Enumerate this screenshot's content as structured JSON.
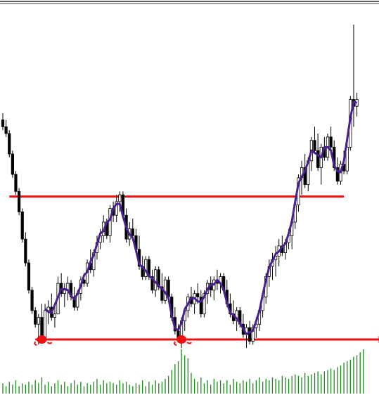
{
  "chart_data": {
    "type": "candlestick",
    "title": "",
    "xlabel": "",
    "ylabel": "",
    "grid": false,
    "legend": "none",
    "ylim": [
      0,
      100
    ],
    "colors": {
      "bull_body": "#ffffff",
      "bear_body": "#000000",
      "wick": "#000000",
      "trend_line": "#4b1f8f",
      "levels": "#ee1111",
      "volume": "#1a8a1a"
    },
    "levels": [
      {
        "kind": "resistance",
        "value": 59.5,
        "start_bar": 2,
        "end_bar": 105
      },
      {
        "kind": "support",
        "value": 17.5,
        "start_bar": 10,
        "end_bar": 117,
        "arrow": true
      }
    ],
    "markers": [
      {
        "shape": "blob",
        "bar": 12,
        "value": 17.5
      },
      {
        "shape": "blob",
        "bar": 55,
        "value": 17.5
      }
    ],
    "bars": [
      {
        "o": 82,
        "h": 84,
        "l": 79,
        "c": 80
      },
      {
        "o": 80,
        "h": 82,
        "l": 77,
        "c": 78
      },
      {
        "o": 78,
        "h": 79,
        "l": 71,
        "c": 72
      },
      {
        "o": 72,
        "h": 73,
        "l": 65,
        "c": 66
      },
      {
        "o": 66,
        "h": 67,
        "l": 60,
        "c": 61
      },
      {
        "o": 61,
        "h": 62,
        "l": 54,
        "c": 55
      },
      {
        "o": 55,
        "h": 56,
        "l": 46,
        "c": 47
      },
      {
        "o": 47,
        "h": 49,
        "l": 39,
        "c": 40
      },
      {
        "o": 40,
        "h": 41,
        "l": 31,
        "c": 32
      },
      {
        "o": 32,
        "h": 33,
        "l": 25,
        "c": 26
      },
      {
        "o": 26,
        "h": 27,
        "l": 21,
        "c": 22
      },
      {
        "o": 22,
        "h": 25,
        "l": 16,
        "c": 24
      },
      {
        "o": 24,
        "h": 28,
        "l": 17,
        "c": 18
      },
      {
        "o": 18,
        "h": 28,
        "l": 18,
        "c": 26
      },
      {
        "o": 26,
        "h": 29,
        "l": 22,
        "c": 27
      },
      {
        "o": 27,
        "h": 31,
        "l": 23,
        "c": 24
      },
      {
        "o": 24,
        "h": 28,
        "l": 21,
        "c": 25
      },
      {
        "o": 25,
        "h": 36,
        "l": 25,
        "c": 34
      },
      {
        "o": 34,
        "h": 37,
        "l": 30,
        "c": 31
      },
      {
        "o": 31,
        "h": 34,
        "l": 27,
        "c": 32
      },
      {
        "o": 32,
        "h": 36,
        "l": 29,
        "c": 34
      },
      {
        "o": 34,
        "h": 35,
        "l": 29,
        "c": 30
      },
      {
        "o": 30,
        "h": 33,
        "l": 26,
        "c": 27
      },
      {
        "o": 27,
        "h": 32,
        "l": 26,
        "c": 31
      },
      {
        "o": 31,
        "h": 36,
        "l": 29,
        "c": 35
      },
      {
        "o": 35,
        "h": 37,
        "l": 33,
        "c": 34
      },
      {
        "o": 34,
        "h": 41,
        "l": 33,
        "c": 40
      },
      {
        "o": 40,
        "h": 44,
        "l": 37,
        "c": 38
      },
      {
        "o": 38,
        "h": 44,
        "l": 36,
        "c": 43
      },
      {
        "o": 43,
        "h": 48,
        "l": 41,
        "c": 46
      },
      {
        "o": 46,
        "h": 50,
        "l": 44,
        "c": 48
      },
      {
        "o": 48,
        "h": 54,
        "l": 46,
        "c": 52
      },
      {
        "o": 52,
        "h": 53,
        "l": 47,
        "c": 48
      },
      {
        "o": 48,
        "h": 57,
        "l": 46,
        "c": 56
      },
      {
        "o": 56,
        "h": 58,
        "l": 52,
        "c": 54
      },
      {
        "o": 54,
        "h": 60,
        "l": 52,
        "c": 58
      },
      {
        "o": 58,
        "h": 61,
        "l": 55,
        "c": 60
      },
      {
        "o": 60,
        "h": 61,
        "l": 53,
        "c": 54
      },
      {
        "o": 54,
        "h": 56,
        "l": 46,
        "c": 47
      },
      {
        "o": 47,
        "h": 52,
        "l": 45,
        "c": 50
      },
      {
        "o": 50,
        "h": 53,
        "l": 47,
        "c": 48
      },
      {
        "o": 48,
        "h": 50,
        "l": 43,
        "c": 44
      },
      {
        "o": 44,
        "h": 48,
        "l": 38,
        "c": 39
      },
      {
        "o": 39,
        "h": 42,
        "l": 35,
        "c": 36
      },
      {
        "o": 36,
        "h": 42,
        "l": 35,
        "c": 41
      },
      {
        "o": 41,
        "h": 42,
        "l": 35,
        "c": 36
      },
      {
        "o": 36,
        "h": 38,
        "l": 31,
        "c": 32
      },
      {
        "o": 32,
        "h": 39,
        "l": 30,
        "c": 38
      },
      {
        "o": 38,
        "h": 39,
        "l": 32,
        "c": 33
      },
      {
        "o": 33,
        "h": 37,
        "l": 28,
        "c": 29
      },
      {
        "o": 29,
        "h": 36,
        "l": 28,
        "c": 35
      },
      {
        "o": 35,
        "h": 36,
        "l": 29,
        "c": 30
      },
      {
        "o": 30,
        "h": 31,
        "l": 23,
        "c": 24
      },
      {
        "o": 24,
        "h": 27,
        "l": 19,
        "c": 20
      },
      {
        "o": 20,
        "h": 22,
        "l": 17,
        "c": 18
      },
      {
        "o": 18,
        "h": 24,
        "l": 15,
        "c": 23
      },
      {
        "o": 23,
        "h": 27,
        "l": 20,
        "c": 26
      },
      {
        "o": 26,
        "h": 31,
        "l": 24,
        "c": 30
      },
      {
        "o": 30,
        "h": 33,
        "l": 27,
        "c": 28
      },
      {
        "o": 28,
        "h": 32,
        "l": 25,
        "c": 31
      },
      {
        "o": 31,
        "h": 34,
        "l": 28,
        "c": 30
      },
      {
        "o": 30,
        "h": 32,
        "l": 24,
        "c": 25
      },
      {
        "o": 25,
        "h": 32,
        "l": 24,
        "c": 31
      },
      {
        "o": 31,
        "h": 35,
        "l": 28,
        "c": 34
      },
      {
        "o": 34,
        "h": 36,
        "l": 30,
        "c": 32
      },
      {
        "o": 32,
        "h": 36,
        "l": 29,
        "c": 35
      },
      {
        "o": 35,
        "h": 38,
        "l": 32,
        "c": 34
      },
      {
        "o": 34,
        "h": 37,
        "l": 31,
        "c": 36
      },
      {
        "o": 36,
        "h": 37,
        "l": 31,
        "c": 32
      },
      {
        "o": 32,
        "h": 35,
        "l": 27,
        "c": 28
      },
      {
        "o": 28,
        "h": 31,
        "l": 24,
        "c": 25
      },
      {
        "o": 25,
        "h": 29,
        "l": 22,
        "c": 23
      },
      {
        "o": 23,
        "h": 27,
        "l": 20,
        "c": 26
      },
      {
        "o": 26,
        "h": 27,
        "l": 21,
        "c": 22
      },
      {
        "o": 22,
        "h": 25,
        "l": 18,
        "c": 19
      },
      {
        "o": 19,
        "h": 22,
        "l": 15,
        "c": 21
      },
      {
        "o": 21,
        "h": 23,
        "l": 16,
        "c": 17
      },
      {
        "o": 17,
        "h": 22,
        "l": 16,
        "c": 21
      },
      {
        "o": 21,
        "h": 24,
        "l": 18,
        "c": 22
      },
      {
        "o": 22,
        "h": 27,
        "l": 20,
        "c": 26
      },
      {
        "o": 26,
        "h": 31,
        "l": 24,
        "c": 30
      },
      {
        "o": 30,
        "h": 37,
        "l": 28,
        "c": 36
      },
      {
        "o": 36,
        "h": 41,
        "l": 33,
        "c": 39
      },
      {
        "o": 39,
        "h": 43,
        "l": 35,
        "c": 41
      },
      {
        "o": 41,
        "h": 45,
        "l": 36,
        "c": 42
      },
      {
        "o": 42,
        "h": 47,
        "l": 39,
        "c": 45
      },
      {
        "o": 45,
        "h": 48,
        "l": 42,
        "c": 43
      },
      {
        "o": 43,
        "h": 47,
        "l": 41,
        "c": 46
      },
      {
        "o": 46,
        "h": 50,
        "l": 44,
        "c": 48
      },
      {
        "o": 48,
        "h": 53,
        "l": 44,
        "c": 52
      },
      {
        "o": 52,
        "h": 58,
        "l": 50,
        "c": 57
      },
      {
        "o": 57,
        "h": 66,
        "l": 55,
        "c": 65
      },
      {
        "o": 65,
        "h": 70,
        "l": 60,
        "c": 68
      },
      {
        "o": 68,
        "h": 72,
        "l": 62,
        "c": 63
      },
      {
        "o": 63,
        "h": 71,
        "l": 61,
        "c": 70
      },
      {
        "o": 70,
        "h": 77,
        "l": 67,
        "c": 76
      },
      {
        "o": 76,
        "h": 80,
        "l": 72,
        "c": 73
      },
      {
        "o": 73,
        "h": 78,
        "l": 67,
        "c": 68
      },
      {
        "o": 68,
        "h": 75,
        "l": 63,
        "c": 74
      },
      {
        "o": 74,
        "h": 77,
        "l": 70,
        "c": 71
      },
      {
        "o": 71,
        "h": 78,
        "l": 70,
        "c": 77
      },
      {
        "o": 77,
        "h": 80,
        "l": 72,
        "c": 74
      },
      {
        "o": 74,
        "h": 76,
        "l": 67,
        "c": 68
      },
      {
        "o": 68,
        "h": 71,
        "l": 63,
        "c": 64
      },
      {
        "o": 64,
        "h": 70,
        "l": 63,
        "c": 69
      },
      {
        "o": 69,
        "h": 73,
        "l": 66,
        "c": 67
      },
      {
        "o": 67,
        "h": 75,
        "l": 66,
        "c": 74
      },
      {
        "o": 74,
        "h": 89,
        "l": 73,
        "c": 88
      },
      {
        "o": 88,
        "h": 110,
        "l": 80,
        "c": 86
      },
      {
        "o": 86,
        "h": 90,
        "l": 83,
        "c": 88
      }
    ],
    "volume": [
      7,
      5,
      8,
      6,
      9,
      5,
      7,
      6,
      8,
      6,
      9,
      7,
      11,
      6,
      8,
      5,
      7,
      9,
      6,
      8,
      5,
      7,
      9,
      6,
      8,
      5,
      7,
      6,
      8,
      10,
      6,
      9,
      7,
      8,
      7,
      6,
      9,
      7,
      8,
      6,
      5,
      7,
      6,
      9,
      5,
      8,
      6,
      9,
      7,
      8,
      10,
      12,
      16,
      20,
      22,
      30,
      26,
      24,
      14,
      10,
      8,
      11,
      7,
      9,
      6,
      10,
      8,
      9,
      7,
      9,
      6,
      10,
      8,
      7,
      9,
      8,
      10,
      7,
      9,
      11,
      8,
      10,
      9,
      11,
      10,
      9,
      12,
      11,
      10,
      12,
      13,
      12,
      11,
      14,
      12,
      13,
      14,
      15,
      13,
      15,
      16,
      17,
      16,
      18,
      19,
      21,
      22,
      23,
      25,
      26,
      28,
      30
    ]
  }
}
